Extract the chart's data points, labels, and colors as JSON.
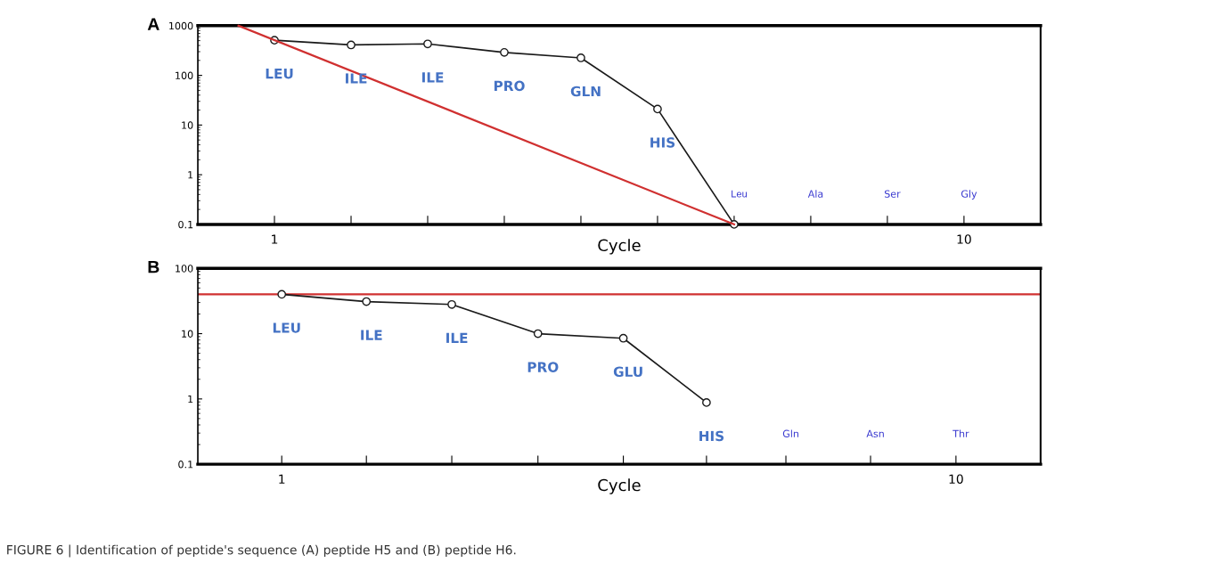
{
  "chart_data": [
    {
      "type": "line",
      "title": "A",
      "xlabel": "Cycle",
      "log": "y",
      "grid": false,
      "legend": false,
      "marker": "circle",
      "line_style": "solid",
      "xlim": [
        0,
        11
      ],
      "xticks": [
        1,
        {
          "value": 2,
          "label": null
        },
        {
          "value": 3,
          "label": null
        },
        {
          "value": 4,
          "label": null
        },
        {
          "value": 5,
          "label": null
        },
        {
          "value": 6,
          "label": null
        },
        {
          "value": 7,
          "label": null
        },
        {
          "value": 8,
          "label": null
        },
        {
          "value": 9,
          "label": null
        },
        10
      ],
      "ylim": [
        0.1,
        1000
      ],
      "yticks": [
        0.1,
        1,
        10,
        100,
        1000
      ],
      "series": [
        {
          "color": "#1a1a1a",
          "x": [
            1,
            2,
            3,
            4,
            5,
            6,
            7
          ],
          "values": [
            510,
            410,
            430,
            290,
            225,
            21,
            0.1
          ]
        },
        {
          "color": "#d03030",
          "marker": "none",
          "x": [
            0.53,
            7
          ],
          "values": [
            1000,
            0.1
          ]
        }
      ],
      "annotations": [
        {
          "text": "LEU",
          "x": 1,
          "y": 510
        },
        {
          "text": "ILE",
          "x": 2,
          "y": 410
        },
        {
          "text": "ILE",
          "x": 3,
          "y": 430
        },
        {
          "text": "PRO",
          "x": 4,
          "y": 290
        },
        {
          "text": "GLN",
          "x": 5,
          "y": 225
        },
        {
          "text": "HIS",
          "x": 6,
          "y": 21
        },
        {
          "text": "Leu",
          "x": 7,
          "y": 0.1
        },
        "Ala",
        "Ser",
        "Gly"
      ]
    },
    {
      "type": "line",
      "title": "B",
      "xlabel": "Cycle",
      "log": "y",
      "grid": false,
      "legend": false,
      "marker": "circle",
      "line_style": "solid",
      "xlim": [
        -0.12,
        11.13
      ],
      "xticks": [
        1,
        {
          "value": 2.13,
          "label": null
        },
        {
          "value": 3.27,
          "label": null
        },
        {
          "value": 4.42,
          "label": null
        },
        {
          "value": 5.56,
          "label": null
        },
        {
          "value": 6.67,
          "label": null
        },
        {
          "value": 7.73,
          "label": null
        },
        {
          "value": 8.86,
          "label": null
        },
        10
      ],
      "ylim": [
        0.1,
        100
      ],
      "yticks": [
        0.1,
        1,
        10,
        100
      ],
      "series": [
        {
          "color": "#1a1a1a",
          "x": [
            1,
            2.13,
            3.27,
            4.42,
            5.56,
            6.67
          ],
          "values": [
            40,
            31,
            28,
            10,
            8.5,
            0.88
          ]
        }
      ],
      "ref_lines": [
        {
          "axis": "y",
          "value": 40,
          "color": "#d03030"
        }
      ],
      "annotations": [
        {
          "text": "LEU",
          "x": 1,
          "y": 40
        },
        {
          "text": "ILE",
          "x": 2.13,
          "y": 31
        },
        {
          "text": "ILE",
          "x": 3.27,
          "y": 28
        },
        {
          "text": "PRO",
          "x": 4.42,
          "y": 10
        },
        {
          "text": "GLU",
          "x": 5.56,
          "y": 8.5
        },
        {
          "text": "HIS",
          "x": 6.67,
          "y": 0.88
        },
        "Gln",
        "Asn",
        "Thr",
        "FIGURE 6 | Identification of peptide's sequence (A) peptide H5 and (B) peptide H6."
      ]
    }
  ]
}
